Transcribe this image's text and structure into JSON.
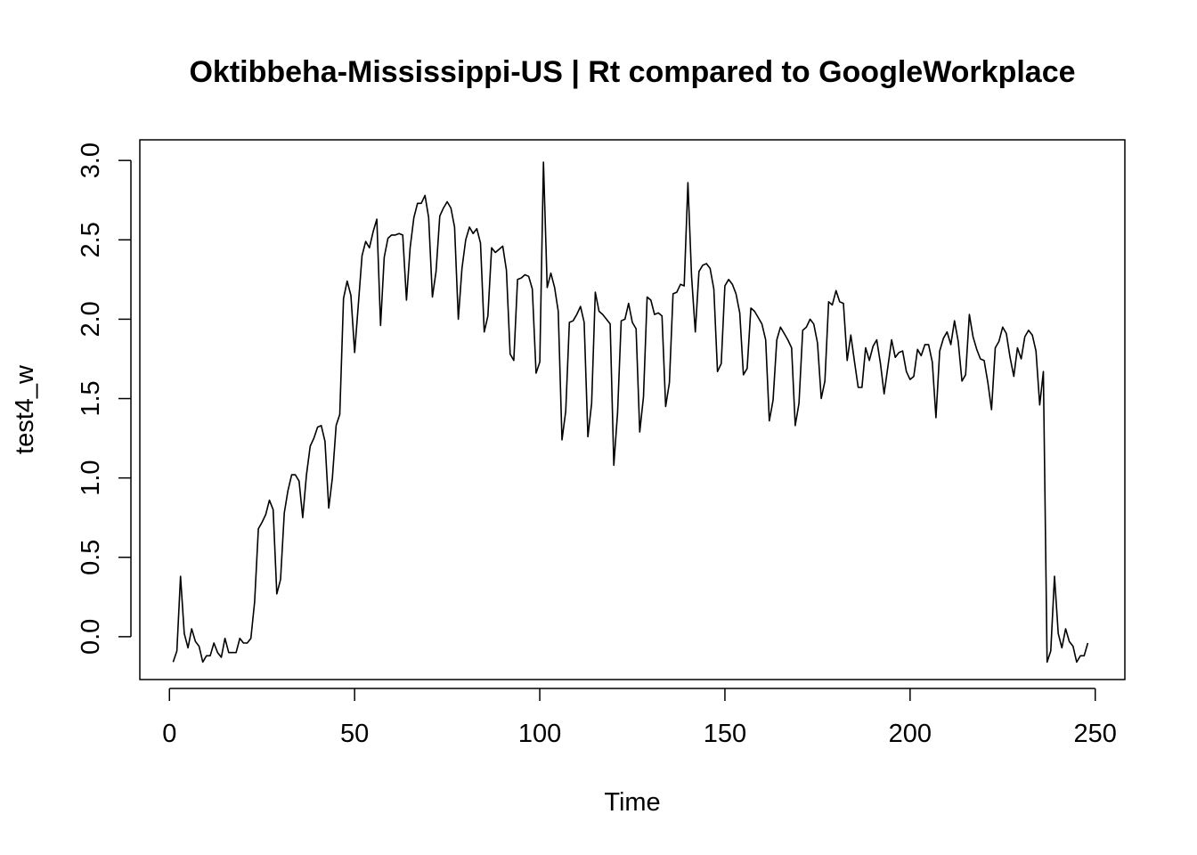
{
  "chart_data": {
    "type": "line",
    "title": "Oktibbeha-Mississippi-US | Rt compared to GoogleWorkplace",
    "xlabel": "Time",
    "ylabel": "test4_w",
    "xlim": [
      -8,
      258
    ],
    "ylim": [
      -0.27,
      3.13
    ],
    "x_ticks": [
      0,
      50,
      100,
      150,
      200,
      250
    ],
    "x_tick_labels": [
      "0",
      "50",
      "100",
      "150",
      "200",
      "250"
    ],
    "y_ticks": [
      0.0,
      0.5,
      1.0,
      1.5,
      2.0,
      2.5,
      3.0
    ],
    "y_tick_labels": [
      "0.0",
      "0.5",
      "1.0",
      "1.5",
      "2.0",
      "2.5",
      "3.0"
    ],
    "grid": false,
    "legend": "none",
    "series": [
      {
        "color": "#000000",
        "x": [
          1,
          2,
          3,
          4,
          5,
          6,
          7,
          8,
          9,
          10,
          11,
          12,
          13,
          14,
          15,
          16,
          17,
          18,
          19,
          20,
          21,
          22,
          23,
          24,
          25,
          26,
          27,
          28,
          29,
          30,
          31,
          32,
          33,
          34,
          35,
          36,
          37,
          38,
          39,
          40,
          41,
          42,
          43,
          44,
          45,
          46,
          47,
          48,
          49,
          50,
          51,
          52,
          53,
          54,
          55,
          56,
          57,
          58,
          59,
          60,
          61,
          62,
          63,
          64,
          65,
          66,
          67,
          68,
          69,
          70,
          71,
          72,
          73,
          74,
          75,
          76,
          77,
          78,
          79,
          80,
          81,
          82,
          83,
          84,
          85,
          86,
          87,
          88,
          89,
          90,
          91,
          92,
          93,
          94,
          95,
          96,
          97,
          98,
          99,
          100,
          101,
          102,
          103,
          104,
          105,
          106,
          107,
          108,
          109,
          110,
          111,
          112,
          113,
          114,
          115,
          116,
          117,
          118,
          119,
          120,
          121,
          122,
          123,
          124,
          125,
          126,
          127,
          128,
          129,
          130,
          131,
          132,
          133,
          134,
          135,
          136,
          137,
          138,
          139,
          140,
          141,
          142,
          143,
          144,
          145,
          146,
          147,
          148,
          149,
          150,
          151,
          152,
          153,
          154,
          155,
          156,
          157,
          158,
          159,
          160,
          161,
          162,
          163,
          164,
          165,
          166,
          167,
          168,
          169,
          170,
          171,
          172,
          173,
          174,
          175,
          176,
          177,
          178,
          179,
          180,
          181,
          182,
          183,
          184,
          185,
          186,
          187,
          188,
          189,
          190,
          191,
          192,
          193,
          194,
          195,
          196,
          197,
          198,
          199,
          200,
          201,
          202,
          203,
          204,
          205,
          206,
          207,
          208,
          209,
          210,
          211,
          212,
          213,
          214,
          215,
          216,
          217,
          218,
          219,
          220,
          221,
          222,
          223,
          224,
          225,
          226,
          227,
          228,
          229,
          230,
          231,
          232,
          233,
          234,
          235,
          236,
          237,
          238,
          239,
          240,
          241,
          242,
          243,
          244,
          245,
          246,
          247,
          248
        ],
        "y": [
          -0.16,
          -0.09,
          0.38,
          0.02,
          -0.07,
          0.05,
          -0.03,
          -0.06,
          -0.16,
          -0.12,
          -0.12,
          -0.04,
          -0.1,
          -0.13,
          -0.01,
          -0.1,
          -0.1,
          -0.1,
          -0.01,
          -0.04,
          -0.04,
          -0.01,
          0.22,
          0.68,
          0.72,
          0.77,
          0.86,
          0.8,
          0.27,
          0.36,
          0.78,
          0.92,
          1.02,
          1.02,
          0.98,
          0.75,
          1.02,
          1.2,
          1.25,
          1.32,
          1.33,
          1.23,
          0.81,
          1.0,
          1.33,
          1.4,
          2.13,
          2.24,
          2.15,
          1.79,
          2.09,
          2.4,
          2.49,
          2.45,
          2.55,
          2.63,
          1.96,
          2.39,
          2.51,
          2.53,
          2.53,
          2.54,
          2.53,
          2.12,
          2.45,
          2.64,
          2.73,
          2.73,
          2.78,
          2.64,
          2.14,
          2.3,
          2.65,
          2.7,
          2.74,
          2.7,
          2.58,
          2.0,
          2.32,
          2.5,
          2.58,
          2.54,
          2.57,
          2.48,
          1.92,
          2.02,
          2.45,
          2.42,
          2.44,
          2.46,
          2.31,
          1.78,
          1.74,
          2.25,
          2.26,
          2.28,
          2.27,
          2.19,
          1.66,
          1.73,
          2.99,
          2.2,
          2.29,
          2.2,
          2.05,
          1.24,
          1.42,
          1.98,
          1.99,
          2.03,
          2.08,
          1.98,
          1.26,
          1.47,
          2.17,
          2.05,
          2.03,
          2.0,
          1.97,
          1.08,
          1.41,
          1.99,
          2.0,
          2.1,
          1.98,
          1.94,
          1.29,
          1.51,
          2.14,
          2.12,
          2.03,
          2.04,
          2.02,
          1.45,
          1.6,
          2.16,
          2.17,
          2.22,
          2.21,
          2.86,
          2.27,
          1.92,
          2.3,
          2.34,
          2.35,
          2.32,
          2.19,
          1.67,
          1.72,
          2.21,
          2.25,
          2.22,
          2.16,
          2.04,
          1.65,
          1.69,
          2.07,
          2.05,
          2.01,
          1.97,
          1.87,
          1.36,
          1.49,
          1.87,
          1.95,
          1.91,
          1.87,
          1.82,
          1.33,
          1.47,
          1.93,
          1.95,
          2.0,
          1.97,
          1.85,
          1.5,
          1.61,
          2.11,
          2.09,
          2.18,
          2.11,
          2.1,
          1.74,
          1.9,
          1.73,
          1.57,
          1.57,
          1.82,
          1.74,
          1.83,
          1.87,
          1.72,
          1.53,
          1.7,
          1.87,
          1.76,
          1.79,
          1.8,
          1.67,
          1.62,
          1.64,
          1.81,
          1.77,
          1.84,
          1.84,
          1.73,
          1.38,
          1.8,
          1.88,
          1.92,
          1.84,
          1.99,
          1.86,
          1.61,
          1.65,
          2.03,
          1.89,
          1.81,
          1.75,
          1.74,
          1.6,
          1.43,
          1.82,
          1.86,
          1.95,
          1.91,
          1.76,
          1.64,
          1.82,
          1.75,
          1.89,
          1.93,
          1.9,
          1.8,
          1.46,
          1.67,
          -0.16,
          -0.09,
          0.38,
          0.02,
          -0.07,
          0.05,
          -0.03,
          -0.06,
          -0.16,
          -0.12,
          -0.12,
          -0.04
        ]
      }
    ]
  }
}
